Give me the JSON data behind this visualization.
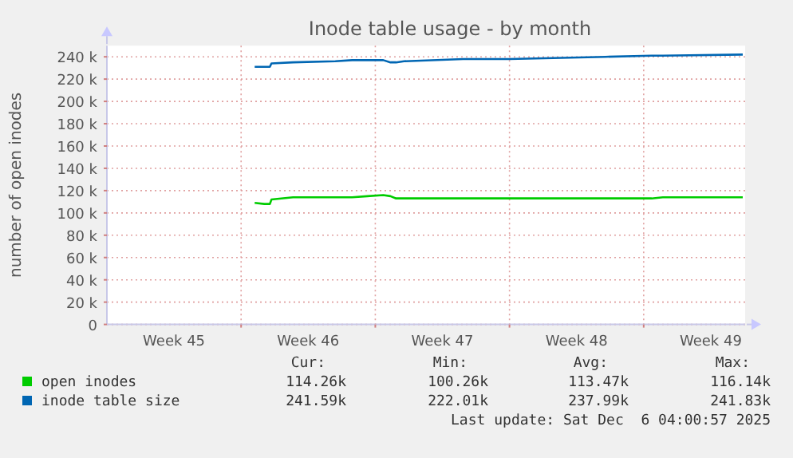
{
  "chart_data": {
    "type": "line",
    "title": "Inode table usage - by month",
    "ylabel": "number of open inodes",
    "x": [
      "2025-11-10T17:00",
      "2025-11-11T05:00",
      "2025-11-11T12:00",
      "2025-11-11T14:00",
      "2025-11-12T17:00",
      "2025-11-14T22:00",
      "2025-11-15T19:00",
      "2025-11-16T14:00",
      "2025-11-17T10:00",
      "2025-11-17T19:00",
      "2025-11-18T02:00",
      "2025-11-18T12:00",
      "2025-11-21T14:00",
      "2025-11-24T00:00",
      "2025-11-29T00:00",
      "2025-12-01T10:00",
      "2025-12-02T00:00",
      "2025-12-06T04:00"
    ],
    "series": [
      {
        "name": "open inodes",
        "color": "#00cc00",
        "values": [
          109000,
          108000,
          108000,
          112000,
          114000,
          114000,
          114000,
          115000,
          116000,
          115000,
          113000,
          113000,
          113000,
          113000,
          113000,
          113000,
          114000,
          114000
        ]
      },
      {
        "name": "inode table size",
        "color": "#0066b3",
        "values": [
          231000,
          231000,
          231000,
          234000,
          235000,
          236000,
          237000,
          237000,
          237000,
          235000,
          235000,
          236000,
          238000,
          238000,
          240000,
          241000,
          241000,
          242000
        ]
      }
    ],
    "xlim": [
      "2025-11-03",
      "2025-12-06T07:00"
    ],
    "xticks": [
      {
        "value": "2025-11-10",
        "label": null
      },
      {
        "value": "2025-11-17",
        "label": null
      },
      {
        "value": "2025-11-24",
        "label": null
      },
      {
        "value": "2025-12-01",
        "label": null
      },
      {
        "value": "2025-11-06T12:00",
        "label": "Week 45"
      },
      {
        "value": "2025-11-13T12:00",
        "label": "Week 46"
      },
      {
        "value": "2025-11-20T12:00",
        "label": "Week 47"
      },
      {
        "value": "2025-11-27T12:00",
        "label": "Week 48"
      },
      {
        "value": "2025-12-04T12:00",
        "label": "Week 49"
      }
    ],
    "ylim": [
      0,
      250000
    ],
    "yticks": [
      {
        "value": 0,
        "label": "0"
      },
      {
        "value": 20000,
        "label": "20 k"
      },
      {
        "value": 40000,
        "label": "40 k"
      },
      {
        "value": 60000,
        "label": "60 k"
      },
      {
        "value": 80000,
        "label": "80 k"
      },
      {
        "value": 100000,
        "label": "100 k"
      },
      {
        "value": 120000,
        "label": "120 k"
      },
      {
        "value": 140000,
        "label": "140 k"
      },
      {
        "value": 160000,
        "label": "160 k"
      },
      {
        "value": 180000,
        "label": "180 k"
      },
      {
        "value": 200000,
        "label": "200 k"
      },
      {
        "value": 220000,
        "label": "220 k"
      },
      {
        "value": 240000,
        "label": "240 k"
      }
    ],
    "grid": true,
    "legend": "bottom",
    "annotations": [
      "Cur:",
      "Min:",
      "Avg:",
      "Max:",
      "114.26k",
      "100.26k",
      "113.47k",
      "116.14k",
      "241.59k",
      "222.01k",
      "237.99k",
      "241.83k",
      "Last update: Sat Dec  6 04:00:57 2025"
    ]
  }
}
